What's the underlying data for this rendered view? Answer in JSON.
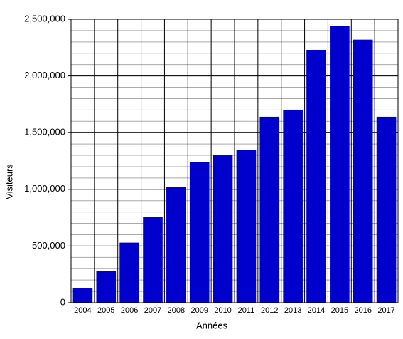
{
  "chart_data": {
    "type": "bar",
    "x_label": "Années",
    "y_label": "Visiteurs",
    "categories": [
      "2004",
      "2005",
      "2006",
      "2007",
      "2008",
      "2009",
      "2010",
      "2011",
      "2012",
      "2013",
      "2014",
      "2015",
      "2016",
      "2017"
    ],
    "values": [
      130000,
      280000,
      530000,
      760000,
      1020000,
      1240000,
      1300000,
      1350000,
      1640000,
      1700000,
      2230000,
      2440000,
      2320000,
      1640000
    ],
    "color": "#0000cc",
    "ylim": [
      0,
      2500000
    ],
    "yticks": [
      0,
      {
        "value": 500000,
        "label": "500,000"
      },
      {
        "value": 1000000,
        "label": "1,000,000"
      },
      {
        "value": 1500000,
        "label": "1,500,000"
      },
      {
        "value": 2000000,
        "label": "2,000,000"
      },
      {
        "value": 2500000,
        "label": "2,500,000"
      }
    ],
    "grid": true,
    "minor_grid": 100000
  }
}
